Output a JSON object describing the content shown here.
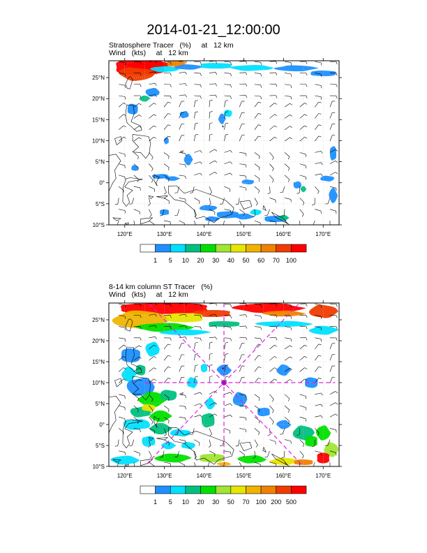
{
  "title": "2014-01-21_12:00:00",
  "colors": {
    "frame": "#000000",
    "grid": "#c8c8c8",
    "coast": "#000000",
    "crosshair": "#e020e0"
  },
  "panels": [
    {
      "name": "stratosphere-tracer",
      "label1": "Stratosphere Tracer   (%)     at   12 km",
      "label2": "Wind   (kts)     at   12 km",
      "colorbar_labels": [
        "1",
        "5",
        "10",
        "20",
        "30",
        "40",
        "50",
        "60",
        "70",
        "100"
      ],
      "colorbar_colors": [
        "#ffffff",
        "#1e90ff",
        "#00e0ff",
        "#00c080",
        "#00e000",
        "#a0e632",
        "#e6e600",
        "#f0b400",
        "#f08200",
        "#f03c00",
        "#ff0000"
      ]
    },
    {
      "name": "column-st-tracer",
      "label1": "8-14 km column ST Tracer   (%)",
      "label2": "Wind   (kts)     at   12 km",
      "colorbar_labels": [
        "1",
        "5",
        "10",
        "20",
        "30",
        "50",
        "70",
        "100",
        "200",
        "500"
      ],
      "colorbar_colors": [
        "#ffffff",
        "#1e90ff",
        "#00e0ff",
        "#00c080",
        "#00e000",
        "#a0e632",
        "#e6e600",
        "#f0b400",
        "#f08200",
        "#f03c00",
        "#ff0000"
      ]
    }
  ],
  "lon_labels": [
    "120°E",
    "130°E",
    "140°E",
    "150°E",
    "160°E",
    "170°E"
  ],
  "lat_labels": [
    "25°N",
    "20°N",
    "15°N",
    "10°N",
    "5°N",
    "0°",
    "5°S",
    "10°S"
  ],
  "map_extent": {
    "lon": [
      116,
      174
    ],
    "lat": [
      -10,
      29
    ]
  },
  "crosshair": {
    "lon": 145,
    "lat": 10
  }
}
